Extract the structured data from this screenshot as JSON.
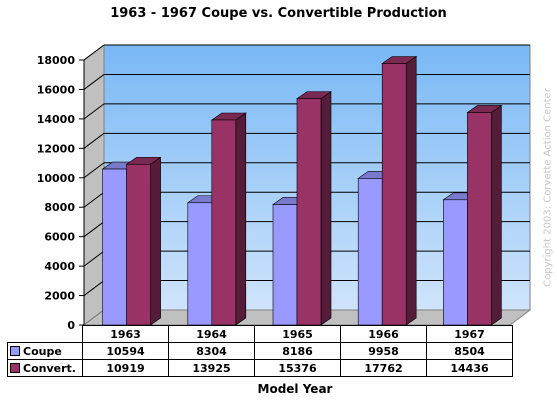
{
  "chart_data": {
    "type": "bar",
    "title": "1963 - 1967 Coupe vs. Convertible Production",
    "xlabel": "Model Year",
    "ylabel": "",
    "categories": [
      "1963",
      "1964",
      "1965",
      "1966",
      "1967"
    ],
    "series": [
      {
        "name": "Coupe",
        "values": [
          10594,
          8304,
          8186,
          9958,
          8504
        ],
        "color": "#9999ff"
      },
      {
        "name": "Convert.",
        "values": [
          10919,
          13925,
          15376,
          17762,
          14436
        ],
        "color": "#993366"
      }
    ],
    "ylim": [
      0,
      18000
    ],
    "yticks": [
      "0",
      "2000",
      "4000",
      "6000",
      "8000",
      "10000",
      "12000",
      "14000",
      "16000",
      "18000"
    ],
    "grid": true,
    "legend": "data-table",
    "annotation": "Copyright 2003:  Corvette Action Center"
  }
}
